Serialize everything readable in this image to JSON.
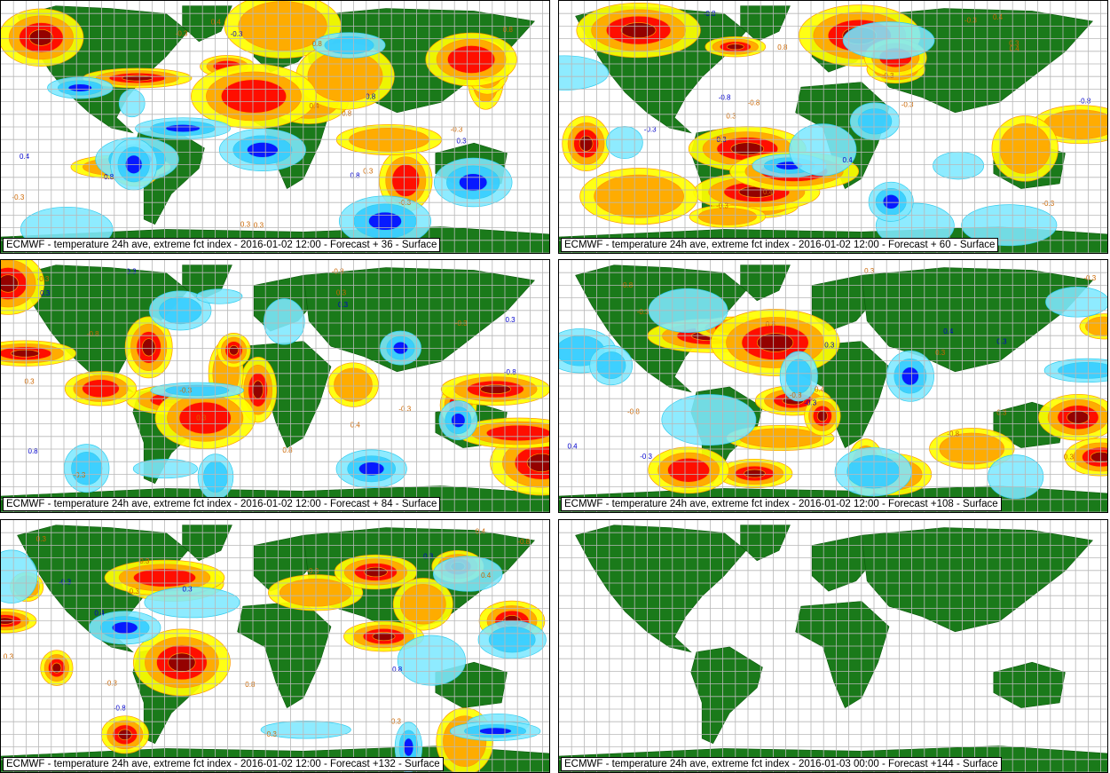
{
  "colors": {
    "land": "#1a7a1a",
    "ocean": "#ffffff",
    "grid": "#b8b8b8",
    "warm_low": "#ffff00",
    "warm_mid": "#ffa500",
    "warm_high": "#ff0000",
    "warm_extreme": "#8b0000",
    "cold_low": "#7ee8ff",
    "cold_mid": "#33ccff",
    "cold_high": "#0000ff",
    "contour_warm": "#ff9900",
    "contour_cold": "#33ccee"
  },
  "panels": [
    {
      "caption": "ECMWF - temperature 24h ave, extreme fct index - 2016-01-02 12:00 - Forecast + 36 - Surface",
      "has_field": true
    },
    {
      "caption": "ECMWF - temperature 24h ave, extreme fct index - 2016-01-02 12:00 - Forecast + 60 - Surface",
      "has_field": true
    },
    {
      "caption": "ECMWF - temperature 24h ave, extreme fct index - 2016-01-02 12:00 - Forecast + 84 - Surface",
      "has_field": true
    },
    {
      "caption": "ECMWF - temperature 24h ave, extreme fct index - 2016-01-02 12:00 - Forecast +108 - Surface",
      "has_field": true
    },
    {
      "caption": "ECMWF - temperature 24h ave, extreme fct index - 2016-01-02 12:00 - Forecast +132 - Surface",
      "has_field": true
    },
    {
      "caption": "ECMWF - temperature 24h ave, extreme fct index - 2016-01-03 00:00 - Forecast +144 - Surface",
      "has_field": false
    }
  ],
  "contour_labels": [
    "0.3",
    "0.4",
    "0.8",
    "-0.3",
    "-0.8"
  ]
}
